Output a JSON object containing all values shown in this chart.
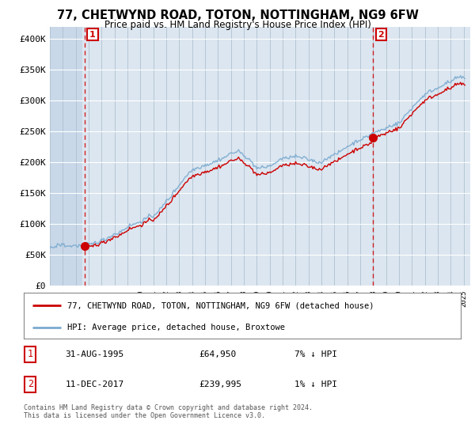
{
  "title": "77, CHETWYND ROAD, TOTON, NOTTINGHAM, NG9 6FW",
  "subtitle": "Price paid vs. HM Land Registry's House Price Index (HPI)",
  "ylim": [
    0,
    420000
  ],
  "yticks": [
    0,
    50000,
    100000,
    150000,
    200000,
    250000,
    300000,
    350000,
    400000
  ],
  "ytick_labels": [
    "£0",
    "£50K",
    "£100K",
    "£150K",
    "£200K",
    "£250K",
    "£300K",
    "£350K",
    "£400K"
  ],
  "sale1_value": 64950,
  "sale1_year": 1995.667,
  "sale1_date_str": "31-AUG-1995",
  "sale1_price_str": "£64,950",
  "sale1_hpi_str": "7% ↓ HPI",
  "sale2_value": 239995,
  "sale2_year": 2017.958,
  "sale2_date_str": "11-DEC-2017",
  "sale2_price_str": "£239,995",
  "sale2_hpi_str": "1% ↓ HPI",
  "legend_line1": "77, CHETWYND ROAD, TOTON, NOTTINGHAM, NG9 6FW (detached house)",
  "legend_line2": "HPI: Average price, detached house, Broxtowe",
  "footer": "Contains HM Land Registry data © Crown copyright and database right 2024.\nThis data is licensed under the Open Government Licence v3.0.",
  "bg_color": "#ffffff",
  "plot_bg_color": "#dce6f0",
  "hpi_color": "#7aaacf",
  "sale_color": "#cc0000",
  "hatch_region_end_year": 1995.5,
  "xlim_start": 1993,
  "xlim_end": 2025.5
}
